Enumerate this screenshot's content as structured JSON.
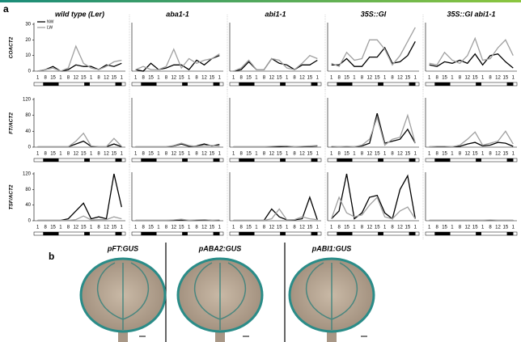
{
  "panel_a_label": "a",
  "chart_data": [
    {
      "type": "line",
      "title": "wild type (Ler)",
      "y_label": "COACT2",
      "categories": [
        "1",
        "8",
        "15",
        "1",
        "8",
        "12",
        "15",
        "1",
        "8",
        "12",
        "15",
        "1"
      ],
      "ylim": [
        0,
        30
      ],
      "yticks": [
        0,
        10,
        20,
        30
      ],
      "series": [
        {
          "name": "NW",
          "color": "#000000",
          "values": [
            0,
            1,
            3,
            0,
            1,
            4,
            3,
            3,
            1,
            4,
            3,
            5
          ]
        },
        {
          "name": "LW",
          "color": "#a0a0a0",
          "values": [
            0,
            1,
            2,
            0,
            2,
            16,
            5,
            2,
            1,
            3,
            6,
            7
          ]
        }
      ]
    },
    {
      "type": "line",
      "title": "aba1-1",
      "categories": [
        "1",
        "8",
        "15",
        "1",
        "8",
        "12",
        "15",
        "1",
        "8",
        "12",
        "15",
        "1"
      ],
      "ylim": [
        0,
        30
      ],
      "series": [
        {
          "color": "#000000",
          "values": [
            1,
            0,
            5,
            1,
            2,
            4,
            4,
            1,
            7,
            4,
            8,
            10
          ]
        },
        {
          "color": "#a0a0a0",
          "values": [
            1,
            3,
            1,
            1,
            3,
            14,
            2,
            8,
            5,
            7,
            8,
            11
          ]
        }
      ]
    },
    {
      "type": "line",
      "title": "abi1-1",
      "categories": [
        "1",
        "8",
        "15",
        "1",
        "8",
        "12",
        "15",
        "1",
        "8",
        "12",
        "15",
        "1"
      ],
      "ylim": [
        0,
        30
      ],
      "series": [
        {
          "color": "#000000",
          "values": [
            0,
            1,
            6,
            1,
            1,
            8,
            5,
            4,
            1,
            4,
            4,
            7
          ]
        },
        {
          "color": "#a0a0a0",
          "values": [
            0,
            2,
            7,
            1,
            1,
            8,
            7,
            2,
            1,
            5,
            10,
            8
          ]
        }
      ]
    },
    {
      "type": "line",
      "title": "35S::GI",
      "categories": [
        "1",
        "8",
        "15",
        "1",
        "8",
        "12",
        "15",
        "1",
        "8",
        "12",
        "15",
        "1"
      ],
      "ylim": [
        0,
        30
      ],
      "series": [
        {
          "color": "#000000",
          "values": [
            4,
            4,
            8,
            3,
            3,
            9,
            9,
            15,
            5,
            6,
            10,
            19
          ]
        },
        {
          "color": "#a0a0a0",
          "values": [
            5,
            3,
            12,
            7,
            8,
            20,
            20,
            14,
            4,
            10,
            19,
            28
          ]
        }
      ]
    },
    {
      "type": "line",
      "title": "35S::GI abi1-1",
      "categories": [
        "1",
        "8",
        "15",
        "1",
        "8",
        "12",
        "15",
        "1",
        "8",
        "12",
        "15",
        "1"
      ],
      "ylim": [
        0,
        30
      ],
      "series": [
        {
          "color": "#000000",
          "values": [
            4,
            3,
            6,
            5,
            7,
            5,
            11,
            4,
            10,
            11,
            6,
            2
          ]
        },
        {
          "color": "#a0a0a0",
          "values": [
            5,
            4,
            12,
            7,
            5,
            10,
            21,
            7,
            8,
            15,
            20,
            10
          ]
        }
      ]
    },
    {
      "type": "line",
      "y_label": "FT/ACT2",
      "categories": [
        "1",
        "8",
        "15",
        "1",
        "8",
        "12",
        "15",
        "1",
        "8",
        "12",
        "15",
        "1"
      ],
      "ylim": [
        0,
        120
      ],
      "yticks": [
        0,
        40,
        80,
        120
      ],
      "series": [
        {
          "color": "#000000",
          "values": [
            1,
            1,
            1,
            1,
            1,
            8,
            15,
            2,
            1,
            1,
            8,
            1
          ]
        },
        {
          "color": "#a0a0a0",
          "values": [
            1,
            1,
            1,
            1,
            1,
            15,
            35,
            3,
            1,
            1,
            22,
            2
          ]
        }
      ]
    },
    {
      "type": "line",
      "categories": [
        "1",
        "8",
        "15",
        "1",
        "8",
        "12",
        "15",
        "1",
        "8",
        "12",
        "15",
        "1"
      ],
      "ylim": [
        0,
        120
      ],
      "series": [
        {
          "color": "#000000",
          "values": [
            1,
            1,
            1,
            1,
            1,
            3,
            8,
            2,
            3,
            8,
            3,
            7
          ]
        },
        {
          "color": "#a0a0a0",
          "values": [
            1,
            1,
            1,
            1,
            1,
            4,
            10,
            4,
            2,
            4,
            4,
            3
          ]
        }
      ]
    },
    {
      "type": "line",
      "categories": [
        "1",
        "8",
        "15",
        "1",
        "8",
        "12",
        "15",
        "1",
        "8",
        "12",
        "15",
        "1"
      ],
      "ylim": [
        0,
        120
      ],
      "series": [
        {
          "color": "#000000",
          "values": [
            1,
            1,
            1,
            1,
            1,
            1,
            1,
            2,
            1,
            1,
            2,
            3
          ]
        },
        {
          "color": "#a0a0a0",
          "values": [
            1,
            1,
            1,
            1,
            1,
            2,
            3,
            3,
            1,
            2,
            3,
            4
          ]
        }
      ]
    },
    {
      "type": "line",
      "categories": [
        "1",
        "8",
        "15",
        "1",
        "8",
        "12",
        "15",
        "1",
        "8",
        "12",
        "15",
        "1"
      ],
      "ylim": [
        0,
        120
      ],
      "series": [
        {
          "color": "#000000",
          "values": [
            1,
            1,
            1,
            1,
            3,
            10,
            85,
            10,
            15,
            20,
            45,
            10
          ]
        },
        {
          "color": "#a0a0a0",
          "values": [
            2,
            1,
            2,
            1,
            5,
            20,
            75,
            5,
            20,
            25,
            80,
            10
          ]
        }
      ]
    },
    {
      "type": "line",
      "categories": [
        "1",
        "8",
        "15",
        "1",
        "8",
        "12",
        "15",
        "1",
        "8",
        "12",
        "15",
        "1"
      ],
      "ylim": [
        0,
        120
      ],
      "series": [
        {
          "color": "#000000",
          "values": [
            1,
            1,
            1,
            1,
            2,
            8,
            12,
            3,
            5,
            12,
            10,
            2
          ]
        },
        {
          "color": "#a0a0a0",
          "values": [
            1,
            2,
            2,
            1,
            5,
            20,
            38,
            5,
            10,
            15,
            40,
            8
          ]
        }
      ]
    },
    {
      "type": "line",
      "y_label": "TSF/ACT2",
      "categories": [
        "1",
        "8",
        "15",
        "1",
        "8",
        "12",
        "15",
        "1",
        "8",
        "12",
        "15",
        "1"
      ],
      "ylim": [
        0,
        120
      ],
      "yticks": [
        0,
        40,
        80,
        120
      ],
      "series": [
        {
          "color": "#000000",
          "values": [
            1,
            1,
            1,
            1,
            5,
            25,
            45,
            5,
            10,
            5,
            120,
            35
          ]
        },
        {
          "color": "#a0a0a0",
          "values": [
            1,
            1,
            1,
            1,
            1,
            3,
            12,
            2,
            3,
            3,
            10,
            5
          ]
        }
      ]
    },
    {
      "type": "line",
      "categories": [
        "1",
        "8",
        "15",
        "1",
        "8",
        "12",
        "15",
        "1",
        "8",
        "12",
        "15",
        "1"
      ],
      "ylim": [
        0,
        120
      ],
      "series": [
        {
          "color": "#000000",
          "values": [
            1,
            1,
            1,
            1,
            1,
            1,
            2,
            1,
            1,
            2,
            1,
            1
          ]
        },
        {
          "color": "#a0a0a0",
          "values": [
            1,
            1,
            1,
            1,
            1,
            2,
            4,
            1,
            2,
            3,
            1,
            2
          ]
        }
      ]
    },
    {
      "type": "line",
      "categories": [
        "1",
        "8",
        "15",
        "1",
        "8",
        "12",
        "15",
        "1",
        "8",
        "12",
        "15",
        "1"
      ],
      "ylim": [
        0,
        120
      ],
      "series": [
        {
          "color": "#000000",
          "values": [
            1,
            1,
            1,
            1,
            1,
            30,
            10,
            2,
            2,
            5,
            60,
            2
          ]
        },
        {
          "color": "#a0a0a0",
          "values": [
            1,
            1,
            1,
            1,
            1,
            5,
            30,
            2,
            3,
            10,
            5,
            3
          ]
        }
      ]
    },
    {
      "type": "line",
      "categories": [
        "1",
        "8",
        "15",
        "1",
        "8",
        "12",
        "15",
        "1",
        "8",
        "12",
        "15",
        "1"
      ],
      "ylim": [
        0,
        120
      ],
      "series": [
        {
          "color": "#000000",
          "values": [
            5,
            25,
            120,
            5,
            20,
            60,
            65,
            20,
            5,
            80,
            115,
            5
          ]
        },
        {
          "color": "#a0a0a0",
          "values": [
            5,
            60,
            20,
            10,
            15,
            40,
            60,
            10,
            5,
            25,
            35,
            5
          ]
        }
      ]
    },
    {
      "type": "line",
      "categories": [
        "1",
        "8",
        "15",
        "1",
        "8",
        "12",
        "15",
        "1",
        "8",
        "12",
        "15",
        "1"
      ],
      "ylim": [
        0,
        120
      ],
      "series": [
        {
          "color": "#000000",
          "values": [
            1,
            1,
            1,
            1,
            1,
            1,
            1,
            1,
            1,
            1,
            1,
            1
          ]
        },
        {
          "color": "#a0a0a0",
          "values": [
            1,
            1,
            1,
            1,
            1,
            1,
            1,
            1,
            2,
            1,
            1,
            1
          ]
        }
      ]
    }
  ],
  "panel_b": {
    "label": "b",
    "images": [
      {
        "title": "pFT:GUS"
      },
      {
        "title": "pABA2:GUS"
      },
      {
        "title": "pABI1:GUS"
      }
    ]
  }
}
